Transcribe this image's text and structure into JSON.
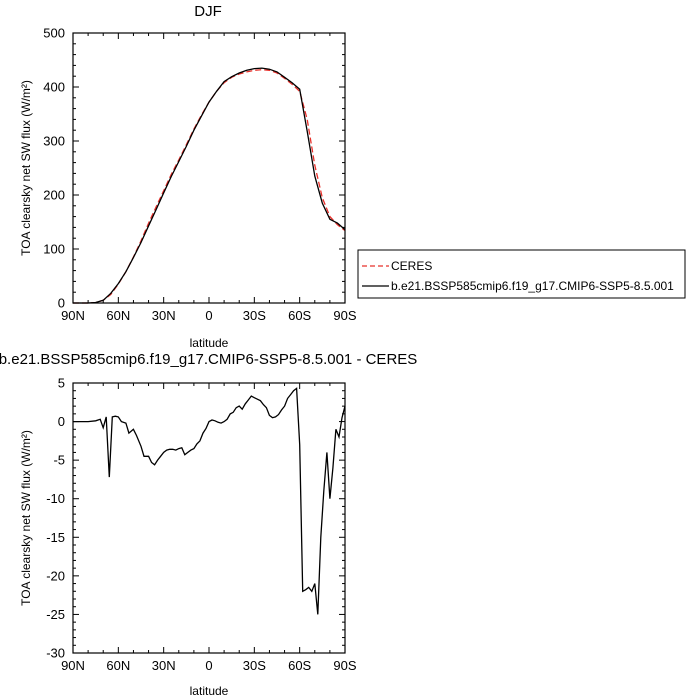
{
  "chart_data": [
    {
      "type": "line",
      "title": "DJF",
      "xlabel": "latitude",
      "ylabel": "TOA clearsky net SW flux (W/m²)",
      "xlim": [
        -90,
        90
      ],
      "ylim": [
        0,
        500
      ],
      "x_ticks": [
        -90,
        -60,
        -30,
        0,
        30,
        60,
        90
      ],
      "x_tick_labels": [
        "90N",
        "60N",
        "30N",
        "0",
        "30S",
        "60S",
        "90S"
      ],
      "y_ticks": [
        0,
        100,
        200,
        300,
        400,
        500
      ],
      "y_tick_labels": [
        "0",
        "100",
        "200",
        "300",
        "400",
        "500"
      ],
      "grid": false,
      "legend_position": "right",
      "series": [
        {
          "name": "CERES",
          "color": "#e8302a",
          "style": "dashed",
          "x": [
            -90,
            -85,
            -80,
            -75,
            -70,
            -65,
            -60,
            -55,
            -50,
            -45,
            -40,
            -35,
            -30,
            -25,
            -20,
            -15,
            -10,
            -5,
            0,
            5,
            10,
            15,
            20,
            25,
            30,
            35,
            40,
            45,
            50,
            55,
            60,
            65,
            70,
            75,
            80,
            85,
            90
          ],
          "y": [
            0,
            0,
            0,
            1,
            5,
            16,
            35,
            58,
            85,
            115,
            148,
            178,
            208,
            238,
            265,
            293,
            322,
            348,
            372,
            392,
            408,
            418,
            424,
            428,
            431,
            432,
            431,
            426,
            416,
            405,
            392,
            340,
            255,
            195,
            160,
            145,
            134
          ]
        },
        {
          "name": "b.e21.BSSP585cmip6.f19_g17.CMIP6-SSP5-8.5.001",
          "color": "#000000",
          "style": "solid",
          "x": [
            -90,
            -85,
            -80,
            -75,
            -70,
            -65,
            -60,
            -55,
            -50,
            -45,
            -40,
            -35,
            -30,
            -25,
            -20,
            -15,
            -10,
            -5,
            0,
            5,
            10,
            15,
            20,
            25,
            30,
            35,
            40,
            45,
            50,
            55,
            60,
            65,
            70,
            75,
            80,
            85,
            90
          ],
          "y": [
            0,
            0,
            0,
            1,
            5,
            18,
            36,
            58,
            84,
            112,
            143,
            173,
            204,
            234,
            262,
            290,
            320,
            346,
            372,
            392,
            410,
            419,
            426,
            431,
            434,
            435,
            433,
            428,
            418,
            408,
            396,
            318,
            235,
            185,
            155,
            148,
            136
          ]
        }
      ]
    },
    {
      "type": "line",
      "title": "b.e21.BSSP585cmip6.f19_g17.CMIP6-SSP5-8.5.001 - CERES",
      "xlabel": "latitude",
      "ylabel": "TOA clearsky net SW flux (W/m²)",
      "xlim": [
        -90,
        90
      ],
      "ylim": [
        -30,
        5
      ],
      "x_ticks": [
        -90,
        -60,
        -30,
        0,
        30,
        60,
        90
      ],
      "x_tick_labels": [
        "90N",
        "60N",
        "30N",
        "0",
        "30S",
        "60S",
        "90S"
      ],
      "y_ticks": [
        -30,
        -25,
        -20,
        -15,
        -10,
        -5,
        0,
        5
      ],
      "y_tick_labels": [
        "-30",
        "-25",
        "-20",
        "-15",
        "-10",
        "-5",
        "0",
        "5"
      ],
      "grid": false,
      "series": [
        {
          "color": "#000000",
          "style": "solid",
          "x": [
            -90,
            -80,
            -75,
            -72,
            -70,
            -68,
            -66,
            -64,
            -62,
            -60,
            -58,
            -55,
            -53,
            -50,
            -48,
            -45,
            -43,
            -40,
            -38,
            -36,
            -34,
            -32,
            -30,
            -28,
            -26,
            -24,
            -22,
            -20,
            -18,
            -16,
            -14,
            -12,
            -10,
            -8,
            -6,
            -4,
            -2,
            0,
            2,
            4,
            6,
            8,
            10,
            12,
            14,
            16,
            18,
            20,
            22,
            24,
            26,
            28,
            30,
            32,
            34,
            36,
            38,
            40,
            42,
            44,
            46,
            48,
            50,
            52,
            54,
            56,
            58,
            60,
            62,
            64,
            66,
            68,
            70,
            72,
            74,
            76,
            78,
            80,
            82,
            84,
            86,
            88,
            90
          ],
          "y": [
            0,
            0,
            0.1,
            0.3,
            -0.8,
            0.6,
            -7.2,
            0.6,
            0.7,
            0.6,
            0,
            -0.2,
            -1.5,
            -1,
            -1.8,
            -3.2,
            -4.5,
            -4.5,
            -5.3,
            -5.6,
            -5.0,
            -4.5,
            -4.0,
            -3.7,
            -3.6,
            -3.6,
            -3.7,
            -3.5,
            -3.4,
            -4.3,
            -4.0,
            -3.7,
            -3.5,
            -2.9,
            -2.5,
            -1.5,
            -0.9,
            0,
            0.2,
            0.1,
            -0.1,
            -0.2,
            0,
            0.3,
            1.0,
            1.2,
            1.8,
            2.0,
            1.6,
            2.3,
            2.8,
            3.3,
            3.1,
            2.9,
            2.7,
            2.2,
            1.8,
            0.8,
            0.5,
            0.6,
            0.9,
            1.5,
            2.0,
            3.0,
            3.5,
            4.0,
            4.3,
            -3.0,
            -22.0,
            -21.8,
            -21.5,
            -22.0,
            -21.0,
            -25.0,
            -15.0,
            -9.0,
            -4.0,
            -10.0,
            -6.0,
            -1.0,
            -2.0,
            0.5,
            2.0
          ]
        }
      ]
    }
  ]
}
